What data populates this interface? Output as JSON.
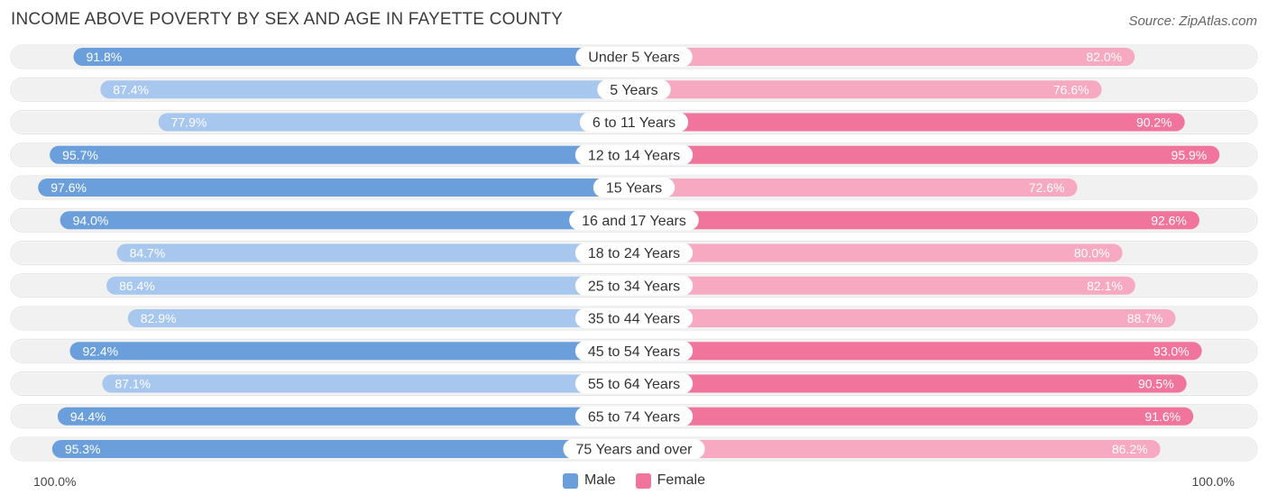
{
  "title": "INCOME ABOVE POVERTY BY SEX AND AGE IN FAYETTE COUNTY",
  "source": "Source: ZipAtlas.com",
  "axis": {
    "left_label": "100.0%",
    "right_label": "100.0%"
  },
  "legend": {
    "male_label": "Male",
    "female_label": "Female"
  },
  "colors": {
    "male_dark": "#6a9fdc",
    "male_light": "#a7c7ee",
    "female_dark": "#f0749b",
    "female_light": "#f7a9c2",
    "track": "#f1f1f1"
  },
  "chart_data": {
    "type": "bar",
    "orientation": "horizontal-diverging",
    "categories": [
      "Under 5 Years",
      "5 Years",
      "6 to 11 Years",
      "12 to 14 Years",
      "15 Years",
      "16 and 17 Years",
      "18 to 24 Years",
      "25 to 34 Years",
      "35 to 44 Years",
      "45 to 54 Years",
      "55 to 64 Years",
      "65 to 74 Years",
      "75 Years and over"
    ],
    "series": [
      {
        "name": "Male",
        "values": [
          91.8,
          87.4,
          77.9,
          95.7,
          97.6,
          94.0,
          84.7,
          86.4,
          82.9,
          92.4,
          87.1,
          94.4,
          95.3
        ],
        "labels": [
          "91.8%",
          "87.4%",
          "77.9%",
          "95.7%",
          "97.6%",
          "94.0%",
          "84.7%",
          "86.4%",
          "82.9%",
          "92.4%",
          "87.1%",
          "94.4%",
          "95.3%"
        ]
      },
      {
        "name": "Female",
        "values": [
          82.0,
          76.6,
          90.2,
          95.9,
          72.6,
          92.6,
          80.0,
          82.1,
          88.7,
          93.0,
          90.5,
          91.6,
          86.2
        ],
        "labels": [
          "82.0%",
          "76.6%",
          "90.2%",
          "95.9%",
          "72.6%",
          "92.6%",
          "80.0%",
          "82.1%",
          "88.7%",
          "93.0%",
          "90.5%",
          "91.6%",
          "86.2%"
        ]
      }
    ],
    "xlim": [
      0,
      100
    ],
    "unit": "%"
  }
}
